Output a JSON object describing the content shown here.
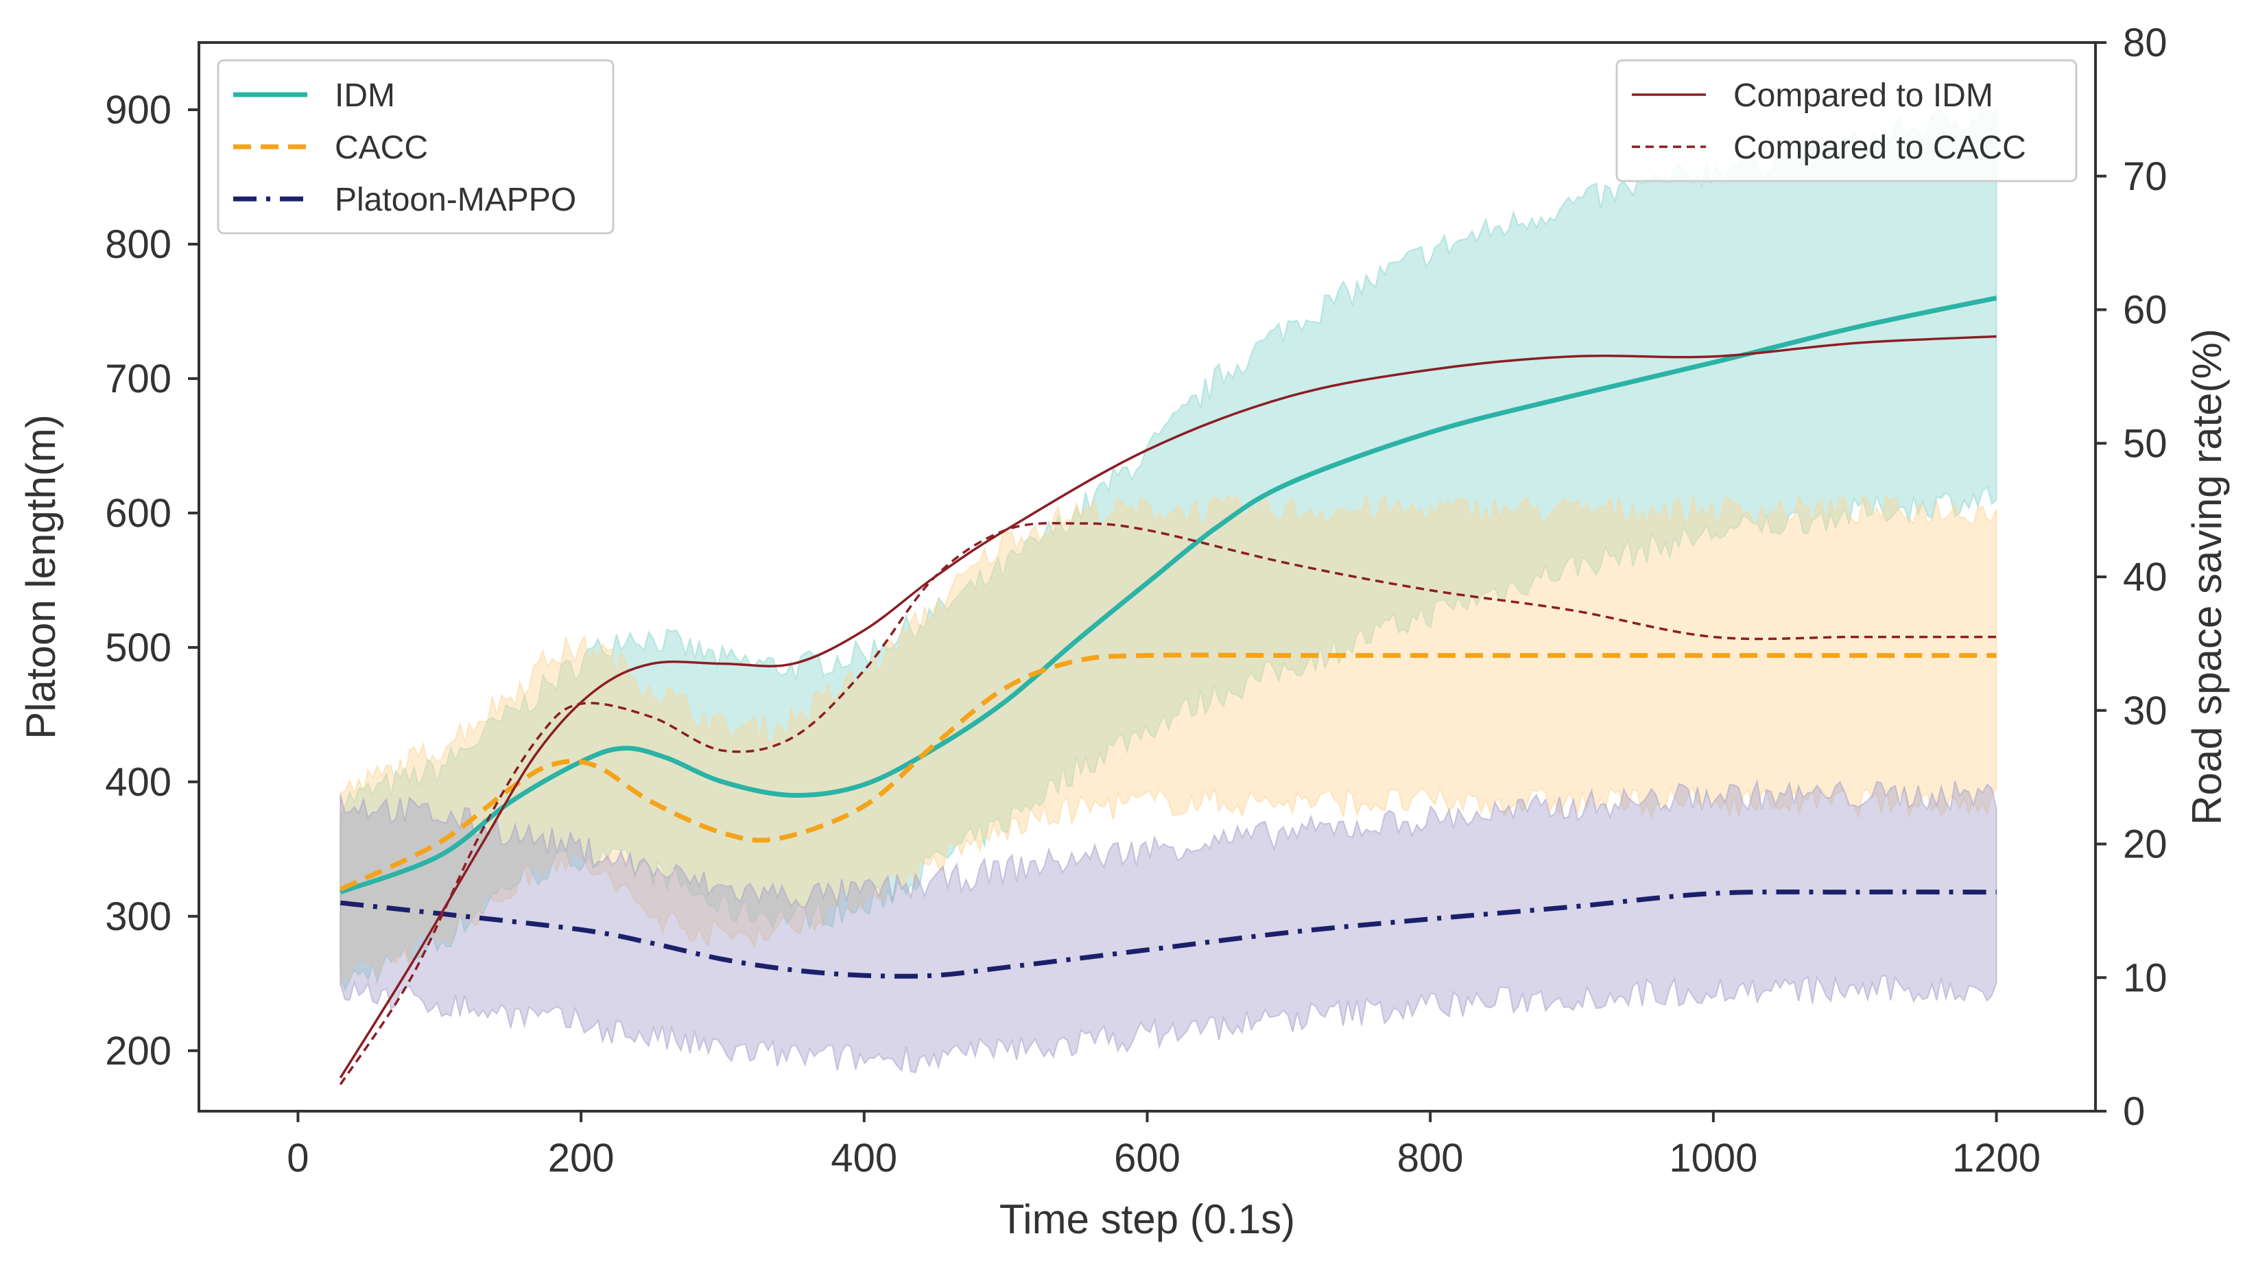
{
  "chart_data": {
    "type": "line",
    "title": "",
    "xlabel": "Time step (0.1s)",
    "ylabel_left": "Platoon length(m)",
    "ylabel_right": "Road space saving rate(%)",
    "xlim": [
      -70,
      1270
    ],
    "ylim_left": [
      155,
      950
    ],
    "ylim_right": [
      0,
      80
    ],
    "xticks": [
      0,
      200,
      400,
      600,
      800,
      1000,
      1200
    ],
    "yticks_left": [
      200,
      300,
      400,
      500,
      600,
      700,
      800,
      900
    ],
    "yticks_right": [
      0,
      10,
      20,
      30,
      40,
      50,
      60,
      70,
      80
    ],
    "colors": {
      "idm": "#2bb3a6",
      "cacc": "#f5a31a",
      "mappo": "#1c1f6b",
      "cmp_idm": "#8b1e24",
      "cmp_cacc": "#8b1e24",
      "idm_band": "#8fd8cf",
      "cacc_band": "#fcd79a",
      "mappo_band": "#a8a3cc"
    },
    "series": [
      {
        "name": "IDM",
        "axis": "left",
        "style": "solid",
        "color_key": "idm",
        "x": [
          30,
          100,
          150,
          200,
          230,
          260,
          300,
          350,
          400,
          450,
          500,
          550,
          600,
          650,
          700,
          800,
          900,
          1000,
          1100,
          1200
        ],
        "y": [
          318,
          345,
          385,
          415,
          425,
          418,
          400,
          390,
          398,
          425,
          460,
          505,
          548,
          590,
          622,
          660,
          687,
          712,
          738,
          760
        ],
        "lower": [
          250,
          280,
          325,
          345,
          340,
          330,
          305,
          300,
          305,
          340,
          370,
          410,
          440,
          465,
          485,
          525,
          560,
          585,
          600,
          612
        ],
        "upper": [
          385,
          410,
          450,
          490,
          510,
          505,
          490,
          485,
          495,
          525,
          560,
          600,
          645,
          700,
          740,
          795,
          830,
          855,
          875,
          900
        ]
      },
      {
        "name": "CACC",
        "axis": "left",
        "style": "dashed",
        "color_key": "cacc",
        "x": [
          30,
          100,
          150,
          180,
          210,
          250,
          300,
          340,
          400,
          450,
          500,
          550,
          600,
          700,
          800,
          1000,
          1200
        ],
        "y": [
          320,
          355,
          395,
          413,
          412,
          385,
          362,
          358,
          382,
          428,
          470,
          490,
          494,
          494,
          494,
          494,
          494
        ],
        "lower": [
          250,
          285,
          320,
          345,
          335,
          300,
          285,
          290,
          315,
          340,
          365,
          380,
          385,
          385,
          385,
          385,
          385
        ],
        "upper": [
          390,
          425,
          465,
          495,
          500,
          470,
          440,
          440,
          480,
          530,
          580,
          600,
          602,
          602,
          602,
          602,
          602
        ]
      },
      {
        "name": "Platoon-MAPPO",
        "axis": "left",
        "style": "dashdot",
        "color_key": "mappo",
        "x": [
          30,
          100,
          200,
          250,
          300,
          350,
          400,
          450,
          500,
          600,
          700,
          800,
          900,
          1000,
          1100,
          1200
        ],
        "y": [
          310,
          302,
          290,
          280,
          268,
          260,
          256,
          256,
          262,
          275,
          288,
          298,
          307,
          317,
          318,
          318
        ],
        "lower": [
          245,
          235,
          220,
          210,
          200,
          196,
          194,
          195,
          200,
          212,
          224,
          234,
          240,
          245,
          245,
          245
        ],
        "upper": [
          385,
          375,
          350,
          335,
          320,
          315,
          318,
          325,
          335,
          350,
          362,
          372,
          382,
          390,
          390,
          390
        ]
      },
      {
        "name": "Compared to IDM",
        "axis": "right",
        "style": "solid-thin",
        "color_key": "cmp_idm",
        "x": [
          30,
          80,
          130,
          170,
          210,
          250,
          300,
          350,
          400,
          450,
          500,
          600,
          700,
          800,
          900,
          1000,
          1100,
          1200
        ],
        "y": [
          2.5,
          11,
          20,
          27,
          31.5,
          33.5,
          33.5,
          33.5,
          36,
          40,
          43.5,
          49.5,
          53.5,
          55.5,
          56.5,
          56.5,
          57.5,
          58
        ]
      },
      {
        "name": "Compared to CACC",
        "axis": "right",
        "style": "dashed-thin",
        "color_key": "cmp_cacc",
        "x": [
          30,
          80,
          130,
          170,
          200,
          250,
          300,
          350,
          400,
          450,
          500,
          550,
          600,
          700,
          800,
          900,
          1000,
          1100,
          1200
        ],
        "y": [
          2,
          10,
          21,
          28,
          30.5,
          29.5,
          27,
          28,
          33,
          40,
          43.5,
          44,
          43.5,
          41,
          39,
          37.5,
          35.5,
          35.5,
          35.5
        ]
      }
    ],
    "legend_left": [
      "IDM",
      "CACC",
      "Platoon-MAPPO"
    ],
    "legend_right": [
      "Compared to IDM",
      "Compared to CACC"
    ],
    "legend_left_position": "top-left",
    "legend_right_position": "top-right",
    "grid": false
  }
}
